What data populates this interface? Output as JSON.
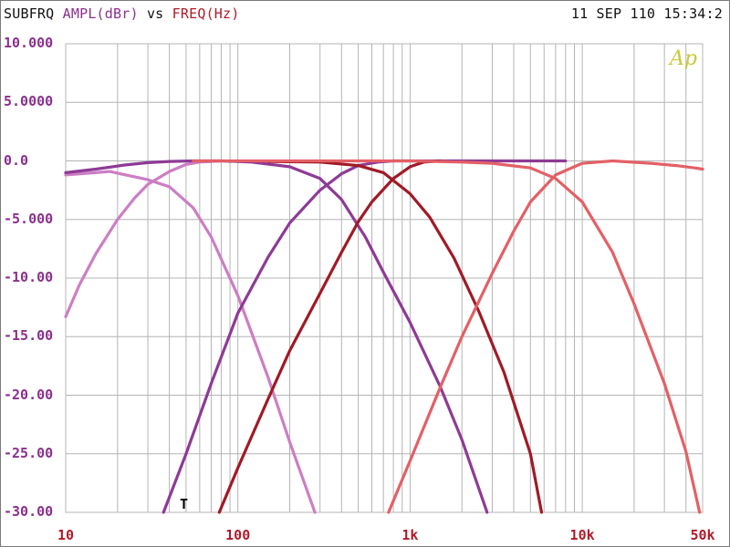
{
  "header": {
    "measure": "SUBFRQ",
    "y_quantity": "AMPL(dBr)",
    "vs": "vs",
    "x_quantity": "FREQ(Hz)",
    "timestamp": "11 SEP 110 15:34:2"
  },
  "logo": "Ap",
  "marker": "T",
  "chart_data": {
    "type": "line",
    "title": "",
    "xlabel": "FREQ(Hz)",
    "ylabel": "AMPL(dBr)",
    "xscale": "log",
    "xlim": [
      10,
      50000
    ],
    "ylim": [
      -30,
      10
    ],
    "grid": true,
    "y_ticks": [
      "10.000",
      "5.0000",
      "0.0",
      "-5.000",
      "-10.00",
      "-15.00",
      "-20.00",
      "-25.00",
      "-30.00"
    ],
    "x_ticks": [
      {
        "value": 10,
        "label": "10"
      },
      {
        "value": 100,
        "label": "100"
      },
      {
        "value": 1000,
        "label": "1k"
      },
      {
        "value": 10000,
        "label": "10k"
      },
      {
        "value": 50000,
        "label": "50k"
      }
    ],
    "colors": {
      "grid": "#b4b4b4",
      "axis_label": "#8b2f8f",
      "freq_label": "#b11a28",
      "curve_a": "#cc7ec4",
      "curve_b": "#8e3a96",
      "curve_c": "#a01a26",
      "curve_d": "#e36066"
    },
    "series": [
      {
        "color": "#cc7ec4",
        "points": [
          [
            10,
            -1.2
          ],
          [
            18,
            -0.9
          ],
          [
            30,
            -1.6
          ],
          [
            40,
            -2.2
          ],
          [
            55,
            -4.0
          ],
          [
            70,
            -6.5
          ],
          [
            100,
            -11.5
          ],
          [
            150,
            -18.5
          ],
          [
            200,
            -24.0
          ],
          [
            280,
            -30.0
          ]
        ]
      },
      {
        "color": "#cc7ec4",
        "points": [
          [
            10,
            -13.3
          ],
          [
            12,
            -10.6
          ],
          [
            15,
            -7.9
          ],
          [
            20,
            -5.0
          ],
          [
            25,
            -3.2
          ],
          [
            30,
            -2.0
          ],
          [
            40,
            -0.9
          ],
          [
            50,
            -0.3
          ],
          [
            60,
            -0.1
          ],
          [
            80,
            0.0
          ]
        ]
      },
      {
        "color": "#8e3a96",
        "points": [
          [
            10,
            -1.0
          ],
          [
            15,
            -0.7
          ],
          [
            22,
            -0.35
          ],
          [
            30,
            -0.15
          ],
          [
            40,
            -0.05
          ],
          [
            55,
            0.0
          ],
          [
            80,
            0.0
          ],
          [
            120,
            -0.1
          ],
          [
            200,
            -0.5
          ],
          [
            300,
            -1.5
          ],
          [
            400,
            -3.3
          ],
          [
            550,
            -6.5
          ],
          [
            700,
            -9.5
          ],
          [
            1000,
            -13.8
          ],
          [
            1500,
            -19.3
          ],
          [
            2000,
            -23.8
          ],
          [
            2800,
            -30.0
          ]
        ]
      },
      {
        "color": "#8e3a96",
        "points": [
          [
            37,
            -30.0
          ],
          [
            50,
            -25.0
          ],
          [
            70,
            -19.0
          ],
          [
            100,
            -13.0
          ],
          [
            150,
            -8.2
          ],
          [
            200,
            -5.3
          ],
          [
            300,
            -2.5
          ],
          [
            400,
            -1.1
          ],
          [
            500,
            -0.4
          ],
          [
            650,
            -0.1
          ],
          [
            800,
            0.0
          ],
          [
            1500,
            0.0
          ],
          [
            3000,
            0.0
          ],
          [
            5000,
            0.0
          ],
          [
            8000,
            0.0
          ]
        ]
      },
      {
        "color": "#a01a26",
        "points": [
          [
            78,
            -30.0
          ],
          [
            100,
            -26.2
          ],
          [
            150,
            -20.3
          ],
          [
            200,
            -16.2
          ],
          [
            300,
            -11.3
          ],
          [
            400,
            -7.8
          ],
          [
            500,
            -5.2
          ],
          [
            600,
            -3.5
          ],
          [
            800,
            -1.5
          ],
          [
            1000,
            -0.5
          ],
          [
            1200,
            -0.1
          ],
          [
            1500,
            0.0
          ]
        ]
      },
      {
        "color": "#a01a26",
        "points": [
          [
            150,
            -0.05
          ],
          [
            300,
            -0.1
          ],
          [
            500,
            -0.4
          ],
          [
            700,
            -1.0
          ],
          [
            1000,
            -2.8
          ],
          [
            1300,
            -4.8
          ],
          [
            1800,
            -8.3
          ],
          [
            2500,
            -12.8
          ],
          [
            3500,
            -18.0
          ],
          [
            5000,
            -25.0
          ],
          [
            5800,
            -30.0
          ]
        ]
      },
      {
        "color": "#e36066",
        "points": [
          [
            55,
            0.0
          ],
          [
            100,
            0.0
          ],
          [
            200,
            0.0
          ],
          [
            500,
            0.0
          ],
          [
            1000,
            0.0
          ],
          [
            2000,
            -0.1
          ],
          [
            3000,
            -0.2
          ],
          [
            5000,
            -0.6
          ],
          [
            7000,
            -1.5
          ],
          [
            10000,
            -3.5
          ],
          [
            15000,
            -7.8
          ],
          [
            20000,
            -12.2
          ],
          [
            30000,
            -19.0
          ],
          [
            40000,
            -24.8
          ],
          [
            48000,
            -30.0
          ]
        ]
      },
      {
        "color": "#e36066",
        "points": [
          [
            750,
            -30.0
          ],
          [
            1000,
            -25.6
          ],
          [
            1500,
            -19.3
          ],
          [
            2000,
            -15.0
          ],
          [
            3000,
            -9.6
          ],
          [
            4000,
            -6.0
          ],
          [
            5000,
            -3.5
          ],
          [
            7000,
            -1.2
          ],
          [
            10000,
            -0.2
          ],
          [
            15000,
            0.0
          ],
          [
            25000,
            -0.2
          ],
          [
            35000,
            -0.4
          ],
          [
            45000,
            -0.6
          ],
          [
            50000,
            -0.7
          ]
        ]
      }
    ]
  }
}
